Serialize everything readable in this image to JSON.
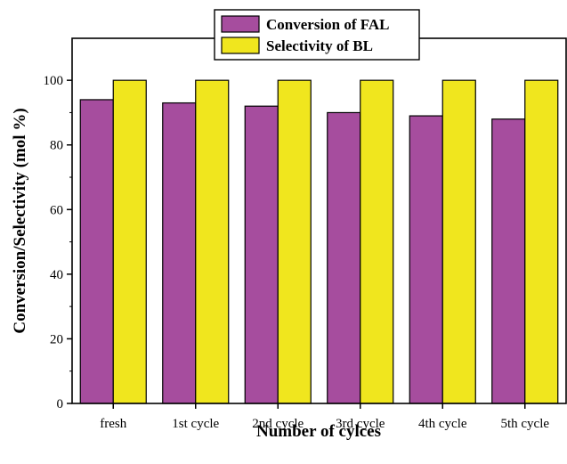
{
  "chart_data": {
    "type": "bar",
    "categories": [
      "fresh",
      "1st cycle",
      "2nd cycle",
      "3rd cycle",
      "4th cycle",
      "5th cycle"
    ],
    "series": [
      {
        "name": "Conversion of FAL",
        "color": "#a64d9e",
        "values": [
          94,
          93,
          92,
          90,
          89,
          88
        ]
      },
      {
        "name": "Selectivity of BL",
        "color": "#f0e61e",
        "values": [
          100,
          100,
          100,
          100,
          100,
          100
        ]
      }
    ],
    "title": "",
    "xlabel": "Number of cylces",
    "ylabel": "Conversion/Selectivity (mol %)",
    "ylim": [
      0,
      113
    ],
    "yticks": [
      0,
      20,
      40,
      60,
      80,
      100
    ],
    "grid": false,
    "legend_position": "top-center"
  }
}
